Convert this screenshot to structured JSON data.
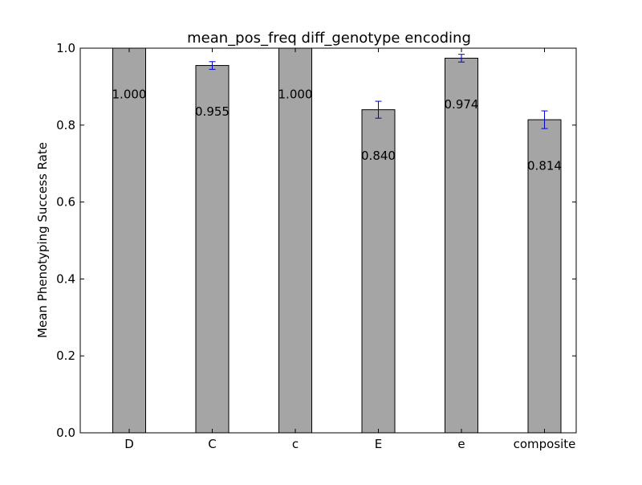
{
  "chart_data": {
    "type": "bar",
    "title": "mean_pos_freq diff_genotype encoding",
    "xlabel": "",
    "ylabel": "Mean Phenotyping Success Rate",
    "categories": [
      "D",
      "C",
      "c",
      "E",
      "e",
      "composite"
    ],
    "values": [
      1.0,
      0.955,
      1.0,
      0.84,
      0.974,
      0.814
    ],
    "value_labels": [
      "1.000",
      "0.955",
      "1.000",
      "0.840",
      "0.974",
      "0.814"
    ],
    "error": [
      0.0,
      0.01,
      0.0,
      0.022,
      0.01,
      0.023
    ],
    "ylim": [
      0,
      1.0
    ],
    "yticks": [
      0.0,
      0.2,
      0.4,
      0.6,
      0.8,
      1.0
    ],
    "ytick_labels": [
      "0.0",
      "0.2",
      "0.4",
      "0.6",
      "0.8",
      "1.0"
    ],
    "grid": false,
    "legend": "none",
    "colors": {
      "bar_fill": "#a5a5a5",
      "bar_edge": "#000000",
      "error_bar": "#0000cc"
    }
  }
}
